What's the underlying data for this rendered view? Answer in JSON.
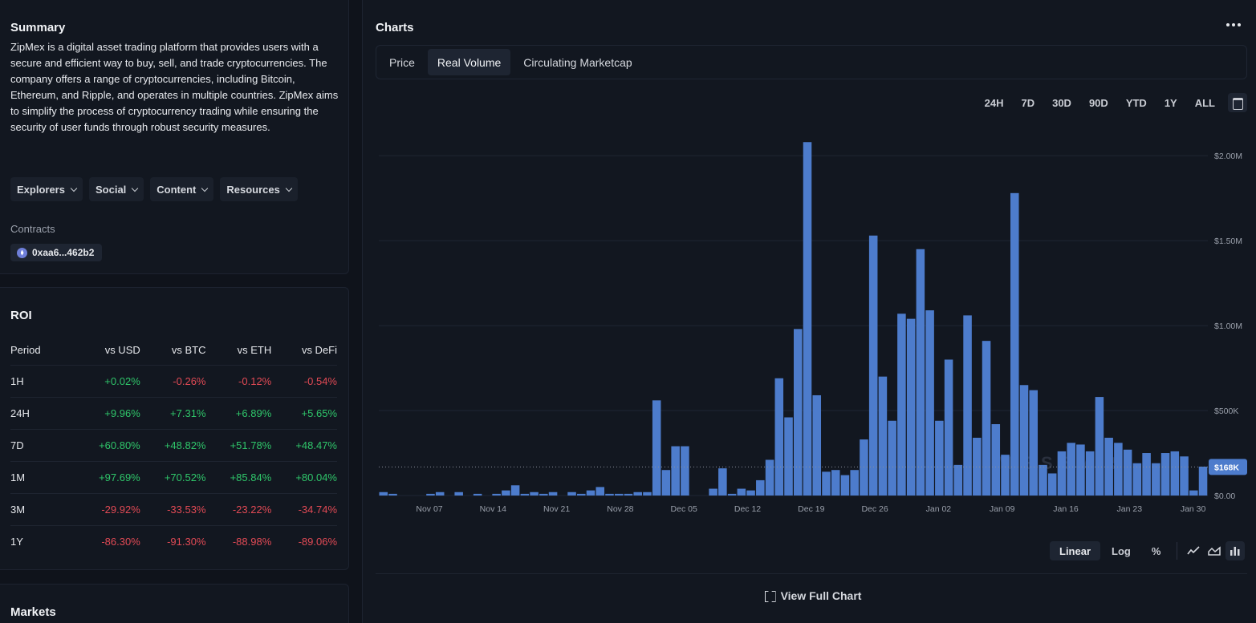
{
  "summary": {
    "title": "Summary",
    "text": "ZipMex is a digital asset trading platform that provides users with a secure and efficient way to buy, sell, and trade cryptocurrencies. The company offers a range of cryptocurrencies, including Bitcoin, Ethereum, and Ripple, and operates in multiple countries. ZipMex aims to simplify the process of cryptocurrency trading while ensuring the security of user funds through robust security measures.",
    "dropdowns": [
      "Explorers",
      "Social",
      "Content",
      "Resources"
    ],
    "contracts_label": "Contracts",
    "contract": "0xaa6...462b2"
  },
  "roi": {
    "title": "ROI",
    "headers": [
      "Period",
      "vs USD",
      "vs BTC",
      "vs ETH",
      "vs DeFi"
    ],
    "rows": [
      [
        "1H",
        "+0.02%",
        "-0.26%",
        "-0.12%",
        "-0.54%"
      ],
      [
        "24H",
        "+9.96%",
        "+7.31%",
        "+6.89%",
        "+5.65%"
      ],
      [
        "7D",
        "+60.80%",
        "+48.82%",
        "+51.78%",
        "+48.47%"
      ],
      [
        "1M",
        "+97.69%",
        "+70.52%",
        "+85.84%",
        "+80.04%"
      ],
      [
        "3M",
        "-29.92%",
        "-33.53%",
        "-23.22%",
        "-34.74%"
      ],
      [
        "1Y",
        "-86.30%",
        "-91.30%",
        "-88.98%",
        "-89.06%"
      ]
    ]
  },
  "markets": {
    "title": "Markets"
  },
  "charts": {
    "title": "Charts",
    "tabs": [
      "Price",
      "Real Volume",
      "Circulating Marketcap"
    ],
    "active_tab": "Real Volume",
    "ranges": [
      "24H",
      "7D",
      "30D",
      "90D",
      "YTD",
      "1Y",
      "ALL"
    ],
    "scales": [
      "Linear",
      "Log",
      "%"
    ],
    "active_scale": "Linear",
    "view_full_label": "View Full Chart",
    "watermark": "MESSARI",
    "accent": "#4d7ccc",
    "current_label": "$168K"
  },
  "chart_data": {
    "type": "bar",
    "title": "",
    "xlabel": "",
    "ylabel": "",
    "ylim": [
      0,
      2.1
    ],
    "y_unit": "millions USD",
    "y_ticks": [
      "$0.00",
      "$500K",
      "$1.00M",
      "$1.50M",
      "$2.00M"
    ],
    "x_ticks": [
      "Nov 07",
      "Nov 14",
      "Nov 21",
      "Nov 28",
      "Dec 05",
      "Dec 12",
      "Dec 19",
      "Dec 26",
      "Jan 02",
      "Jan 09",
      "Jan 16",
      "Jan 23",
      "Jan 30"
    ],
    "current_value": 0.168,
    "values": [
      0.02,
      0.01,
      0,
      0,
      0,
      0.01,
      0.02,
      0,
      0.02,
      0,
      0.01,
      0,
      0.01,
      0.03,
      0.06,
      0.01,
      0.02,
      0.01,
      0.02,
      0,
      0.02,
      0.01,
      0.03,
      0.05,
      0.01,
      0.01,
      0.01,
      0.02,
      0.02,
      0.56,
      0.15,
      0.29,
      0.29,
      0,
      0,
      0.04,
      0.16,
      0.01,
      0.04,
      0.03,
      0.09,
      0.21,
      0.69,
      0.46,
      0.98,
      2.08,
      0.59,
      0.14,
      0.15,
      0.12,
      0.15,
      0.33,
      1.53,
      0.7,
      0.44,
      1.07,
      1.04,
      1.45,
      1.09,
      0.44,
      0.8,
      0.18,
      1.06,
      0.34,
      0.91,
      0.42,
      0.24,
      1.78,
      0.65,
      0.62,
      0.18,
      0.13,
      0.26,
      0.31,
      0.3,
      0.26,
      0.58,
      0.34,
      0.31,
      0.27,
      0.19,
      0.25,
      0.19,
      0.25,
      0.26,
      0.23,
      0.03,
      0.17
    ]
  }
}
